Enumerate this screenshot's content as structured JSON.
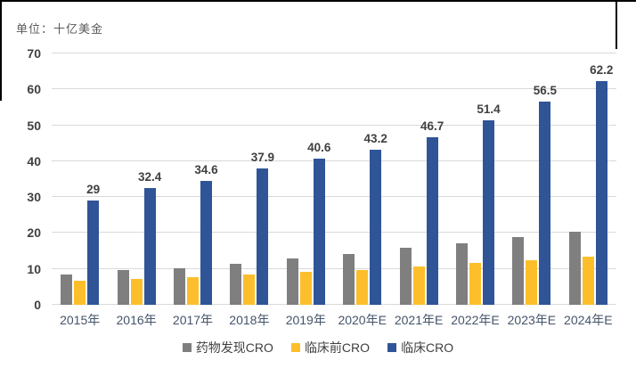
{
  "figure": {
    "unit_label": "单位：十亿美金"
  },
  "chart_data": {
    "type": "bar",
    "title": "",
    "unit_label": "单位：十亿美金",
    "categories": [
      "2015年",
      "2016年",
      "2017年",
      "2018年",
      "2019年",
      "2020年E",
      "2021年E",
      "2022年E",
      "2023年E",
      "2024年E"
    ],
    "series": [
      {
        "name": "药物发现CRO",
        "color": "#7f7f7f",
        "values": [
          8.5,
          9.6,
          10.3,
          11.5,
          13.0,
          14.2,
          15.9,
          17.2,
          18.8,
          20.4
        ],
        "labels_visible": false
      },
      {
        "name": "临床前CRO",
        "color": "#fcbf2b",
        "values": [
          6.7,
          7.2,
          7.8,
          8.5,
          9.1,
          9.8,
          10.8,
          11.7,
          12.5,
          13.4
        ],
        "labels_visible": false
      },
      {
        "name": "临床CRO",
        "color": "#2f5597",
        "values": [
          29,
          32.4,
          34.6,
          37.9,
          40.6,
          43.2,
          46.7,
          51.4,
          56.5,
          62.2
        ],
        "labels_visible": true,
        "data_labels": [
          "29",
          "32.4",
          "34.6",
          "37.9",
          "40.6",
          "43.2",
          "46.7",
          "51.4",
          "56.5",
          "62.2"
        ]
      }
    ],
    "ylim": [
      0,
      70
    ],
    "ytick_interval": 10,
    "yticks": [
      "0",
      "10",
      "20",
      "30",
      "40",
      "50",
      "60",
      "70"
    ],
    "grid": true,
    "legend_position": "bottom",
    "colors": {
      "grid": "#d9d9d9",
      "ytick_text": "#404040",
      "xtick_text": "#44546a",
      "data_label_text": "#404040",
      "unit_text": "#595959"
    }
  }
}
